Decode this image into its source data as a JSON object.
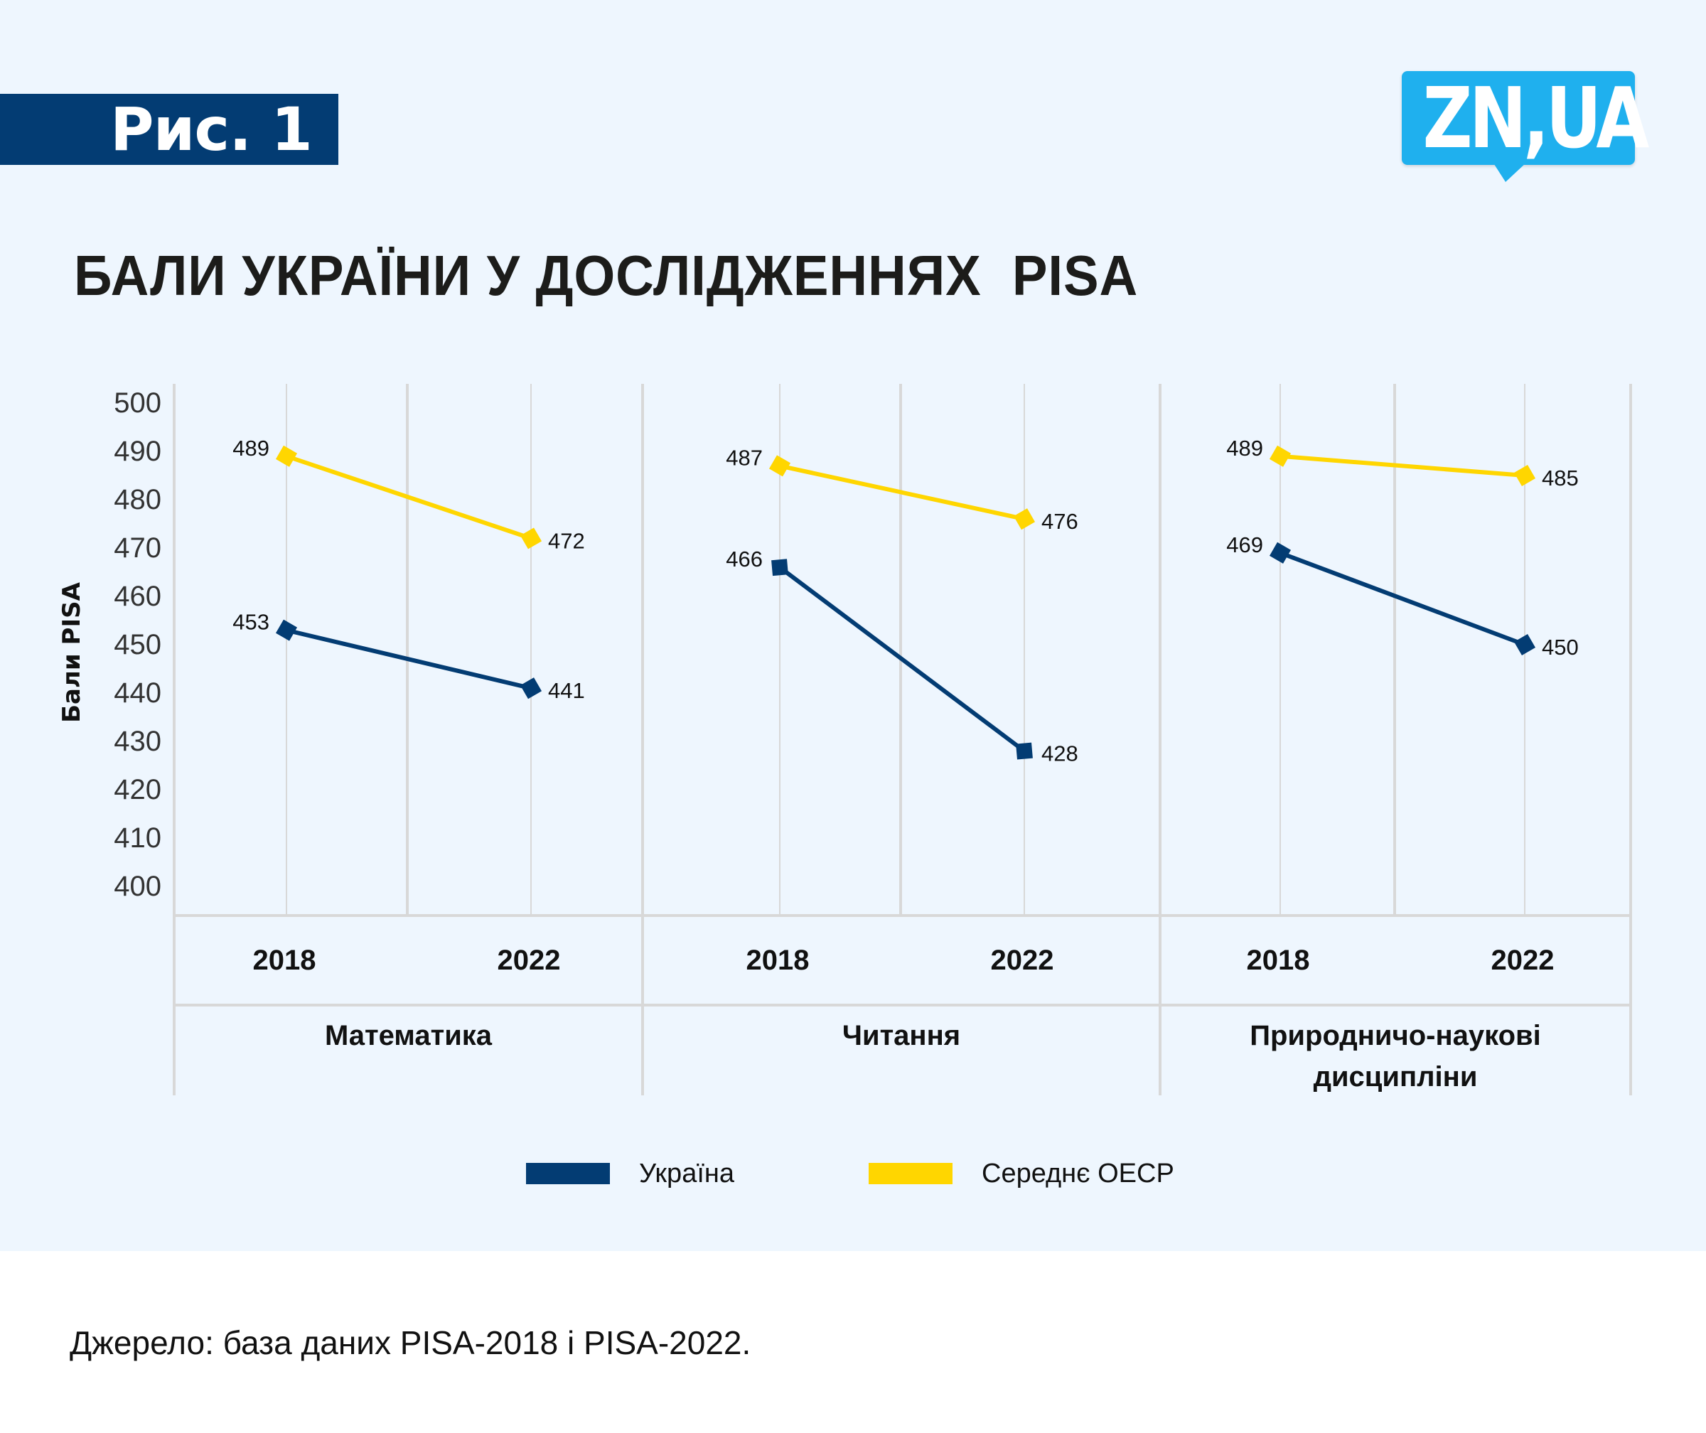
{
  "figure_label": "Рис. 1",
  "logo_text": "ZN,UA",
  "title": "БАЛИ УКРАЇНИ У ДОСЛІДЖЕННЯХ  PISA",
  "source": "Джерело: база даних PISA-2018 і PISA-2022.",
  "colors": {
    "ukraine": "#033c73",
    "oecd": "#ffd600",
    "grid": "#d8d8d8",
    "badge": "#033c73",
    "logo": "#1fb0ee"
  },
  "chart_data": {
    "type": "line",
    "title": "БАЛИ УКРАЇНИ У ДОСЛІДЖЕННЯХ  PISA",
    "ylabel": "Бали PISA",
    "xlabel": "",
    "ylim": [
      400,
      500
    ],
    "yticks": [
      500,
      490,
      480,
      470,
      460,
      450,
      440,
      430,
      420,
      410,
      400
    ],
    "grid": true,
    "legend_position": "bottom",
    "legend": [
      {
        "name": "Україна",
        "color": "#033c73"
      },
      {
        "name": "Середнє ОЕСР",
        "color": "#ffd600"
      }
    ],
    "panels": [
      {
        "category": "Математика",
        "x": [
          "2018",
          "2022"
        ],
        "series": [
          {
            "name": "Україна",
            "values": [
              453,
              441
            ],
            "marker": "diamond"
          },
          {
            "name": "Середнє ОЕСР",
            "values": [
              489,
              472
            ],
            "marker": "diamond"
          }
        ]
      },
      {
        "category": "Читання",
        "x": [
          "2018",
          "2022"
        ],
        "series": [
          {
            "name": "Україна",
            "values": [
              466,
              428
            ],
            "marker": "square"
          },
          {
            "name": "Середнє ОЕСР",
            "values": [
              487,
              476
            ],
            "marker": "diamond"
          }
        ]
      },
      {
        "category": "Природничо-наукові дисципліни",
        "category_lines": [
          "Природничо-наукові",
          "дисципліни"
        ],
        "x": [
          "2018",
          "2022"
        ],
        "series": [
          {
            "name": "Україна",
            "values": [
              469,
              450
            ],
            "marker": "diamond"
          },
          {
            "name": "Середнє ОЕСР",
            "values": [
              489,
              485
            ],
            "marker": "diamond"
          }
        ]
      }
    ]
  }
}
